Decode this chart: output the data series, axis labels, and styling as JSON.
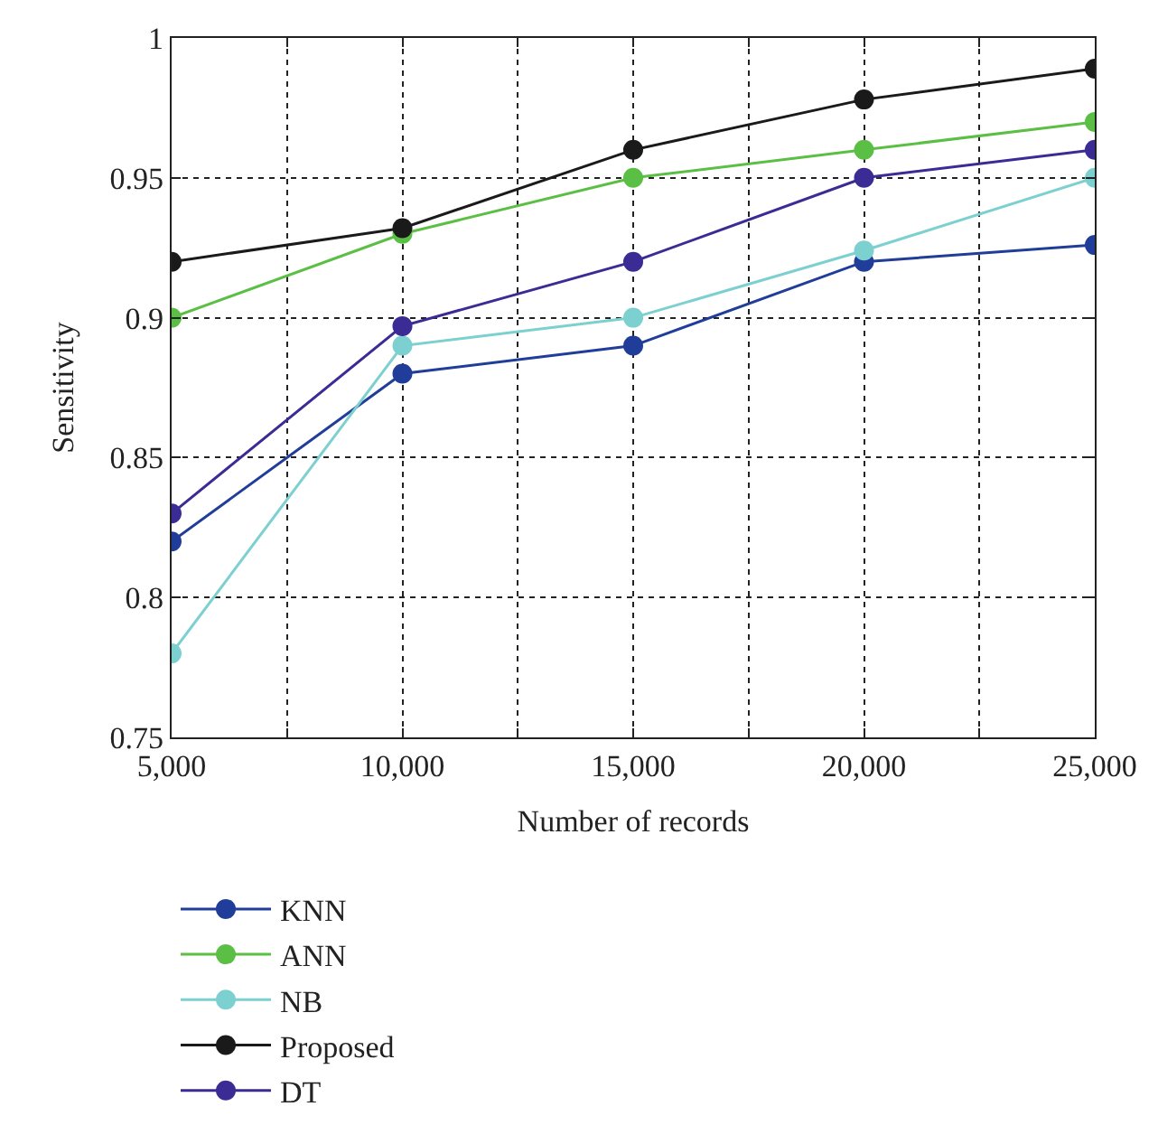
{
  "chart_data": {
    "type": "line",
    "xlabel": "Number of records",
    "ylabel": "Sensitivity",
    "x": [
      5000,
      10000,
      15000,
      20000,
      25000
    ],
    "xlim": [
      5000,
      25000
    ],
    "xticks": [
      {
        "value": 5000,
        "label": "5,000"
      },
      {
        "value": 7500,
        "label": null
      },
      {
        "value": 10000,
        "label": "10,000"
      },
      {
        "value": 12500,
        "label": null
      },
      {
        "value": 15000,
        "label": "15,000"
      },
      {
        "value": 17500,
        "label": null
      },
      {
        "value": 20000,
        "label": "20,000"
      },
      {
        "value": 22500,
        "label": null
      },
      {
        "value": 25000,
        "label": "25,000"
      }
    ],
    "ylim": [
      0.75,
      1
    ],
    "yticks": [
      0.75,
      0.8,
      0.85,
      0.9,
      0.95,
      1
    ],
    "grid": true,
    "legend": "bottom",
    "marker": "circle",
    "line_style": "solid",
    "series": [
      {
        "name": "KNN",
        "color": "#1f3d99",
        "values": [
          0.82,
          0.88,
          0.89,
          0.92,
          0.926
        ]
      },
      {
        "name": "NB",
        "color": "#7dd0d0",
        "values": [
          0.78,
          0.89,
          0.9,
          0.924,
          0.95
        ]
      },
      {
        "name": "DT",
        "color": "#3a2c94",
        "values": [
          0.83,
          0.897,
          0.92,
          0.95,
          0.96
        ]
      },
      {
        "name": "ANN",
        "color": "#5cbf45",
        "values": [
          0.9,
          0.93,
          0.95,
          0.96,
          0.97
        ]
      },
      {
        "name": "Proposed",
        "color": "#1a1a1a",
        "values": [
          0.92,
          0.932,
          0.96,
          0.978,
          0.989
        ]
      }
    ]
  }
}
